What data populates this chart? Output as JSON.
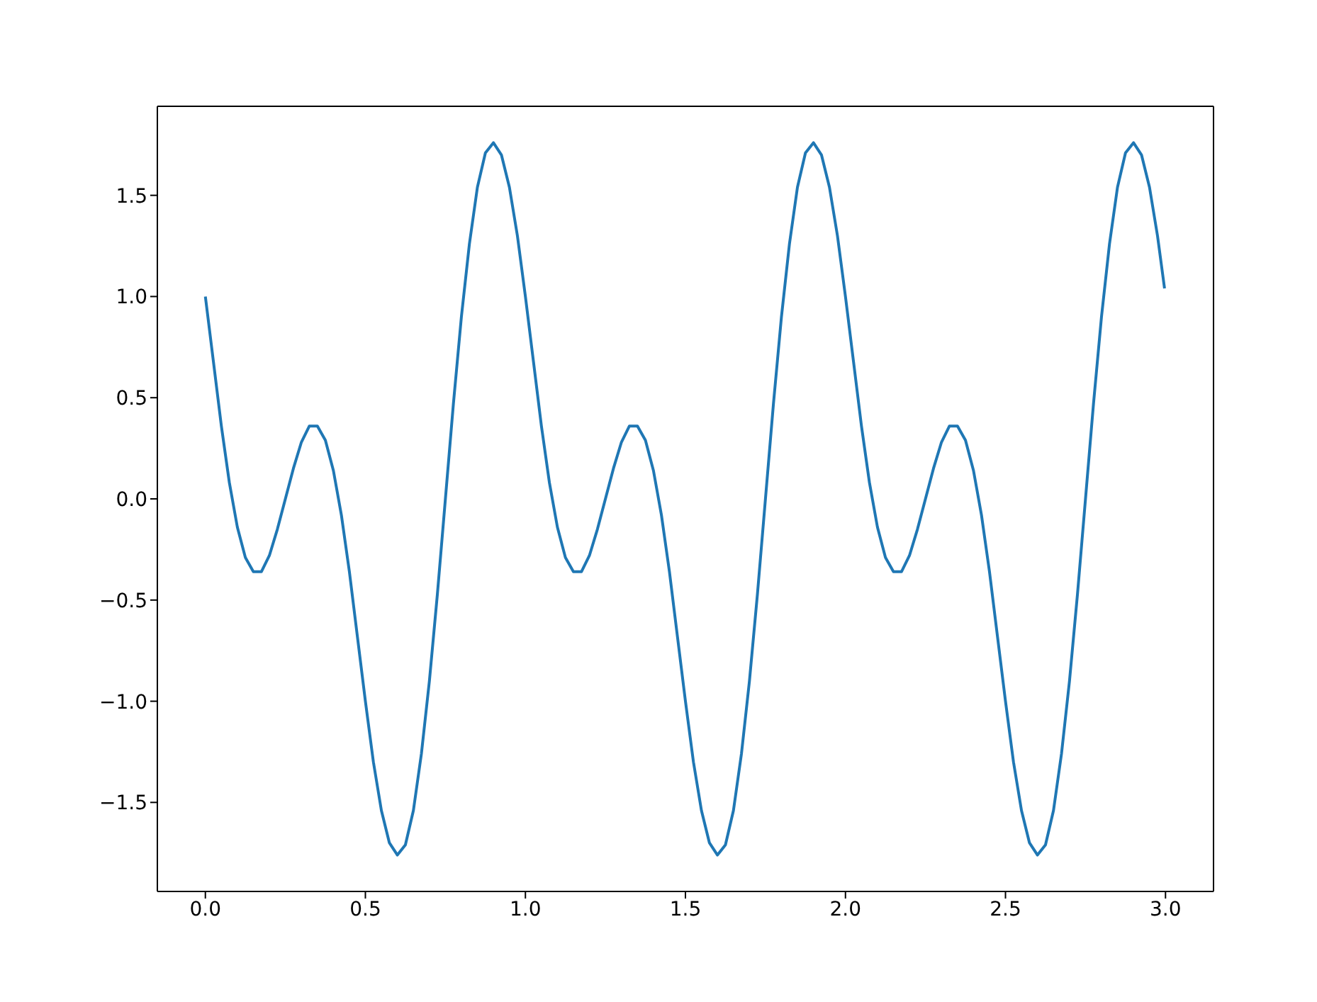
{
  "chart_data": {
    "type": "line",
    "x": [
      0,
      0.025,
      0.05,
      0.075,
      0.1,
      0.125,
      0.15,
      0.175,
      0.2,
      0.225,
      0.25,
      0.275,
      0.3,
      0.325,
      0.35,
      0.375,
      0.4,
      0.425,
      0.45,
      0.475,
      0.5,
      0.525,
      0.55,
      0.575,
      0.6,
      0.625,
      0.65,
      0.675,
      0.7,
      0.725,
      0.75,
      0.775,
      0.8,
      0.825,
      0.85,
      0.875,
      0.9,
      0.925,
      0.95,
      0.975,
      1,
      1.025,
      1.05,
      1.075,
      1.1,
      1.125,
      1.15,
      1.175,
      1.2,
      1.225,
      1.25,
      1.275,
      1.3,
      1.325,
      1.35,
      1.375,
      1.4,
      1.425,
      1.45,
      1.475,
      1.5,
      1.525,
      1.55,
      1.575,
      1.6,
      1.625,
      1.65,
      1.675,
      1.7,
      1.725,
      1.75,
      1.775,
      1.8,
      1.825,
      1.85,
      1.875,
      1.9,
      1.925,
      1.95,
      1.975,
      2,
      2.025,
      2.05,
      2.075,
      2.1,
      2.125,
      2.15,
      2.175,
      2.2,
      2.225,
      2.25,
      2.275,
      2.3,
      2.325,
      2.35,
      2.375,
      2.4,
      2.425,
      2.45,
      2.475,
      2.5,
      2.525,
      2.55,
      2.575,
      2.6,
      2.625,
      2.65,
      2.675,
      2.7,
      2.725,
      2.75,
      2.775,
      2.8,
      2.825,
      2.85,
      2.875,
      2.9,
      2.925,
      2.95,
      2.975,
      2.997
    ],
    "series": [
      {
        "color": "#1f77b4",
        "values": [
          1,
          0.68,
          0.36,
          0.08,
          -0.14,
          -0.29,
          -0.36,
          -0.36,
          -0.28,
          -0.15,
          0,
          0.15,
          0.28,
          0.36,
          0.36,
          0.29,
          0.14,
          -0.08,
          -0.36,
          -0.68,
          -1,
          -1.3,
          -1.54,
          -1.7,
          -1.76,
          -1.71,
          -1.54,
          -1.26,
          -0.9,
          -0.47,
          0,
          0.47,
          0.9,
          1.26,
          1.54,
          1.71,
          1.76,
          1.7,
          1.54,
          1.3,
          1,
          0.68,
          0.36,
          0.08,
          -0.14,
          -0.29,
          -0.36,
          -0.36,
          -0.28,
          -0.15,
          0,
          0.15,
          0.28,
          0.36,
          0.36,
          0.29,
          0.14,
          -0.08,
          -0.36,
          -0.68,
          -1,
          -1.3,
          -1.54,
          -1.7,
          -1.76,
          -1.71,
          -1.54,
          -1.26,
          -0.9,
          -0.47,
          0,
          0.47,
          0.9,
          1.26,
          1.54,
          1.71,
          1.76,
          1.7,
          1.54,
          1.3,
          1,
          0.68,
          0.36,
          0.08,
          -0.14,
          -0.29,
          -0.36,
          -0.36,
          -0.28,
          -0.15,
          0,
          0.15,
          0.28,
          0.36,
          0.36,
          0.29,
          0.14,
          -0.08,
          -0.36,
          -0.68,
          -1,
          -1.3,
          -1.54,
          -1.7,
          -1.76,
          -1.71,
          -1.54,
          -1.26,
          -0.9,
          -0.47,
          0,
          0.47,
          0.9,
          1.26,
          1.54,
          1.71,
          1.76,
          1.7,
          1.54,
          1.3,
          1.04
        ]
      }
    ],
    "xlim": [
      -0.15,
      3.15
    ],
    "xticks": [
      {
        "value": 0,
        "label": "0.0"
      },
      {
        "value": 0.5,
        "label": "0.5"
      },
      {
        "value": 1,
        "label": "1.0"
      },
      {
        "value": 1.5,
        "label": "1.5"
      },
      {
        "value": 2,
        "label": "2.0"
      },
      {
        "value": 2.5,
        "label": "2.5"
      },
      {
        "value": 3,
        "label": "3.0"
      }
    ],
    "ylim": [
      -1.94,
      1.94
    ],
    "yticks": [
      {
        "value": -1.5,
        "label": "−1.5"
      },
      {
        "value": -1,
        "label": "−1.0"
      },
      {
        "value": -0.5,
        "label": "−0.5"
      },
      {
        "value": 0,
        "label": "0.0"
      },
      {
        "value": 0.5,
        "label": "0.5"
      },
      {
        "value": 1,
        "label": "1.0"
      },
      {
        "value": 1.5,
        "label": "1.5"
      }
    ],
    "grid": false,
    "marker": "none",
    "line_style": "solid"
  }
}
